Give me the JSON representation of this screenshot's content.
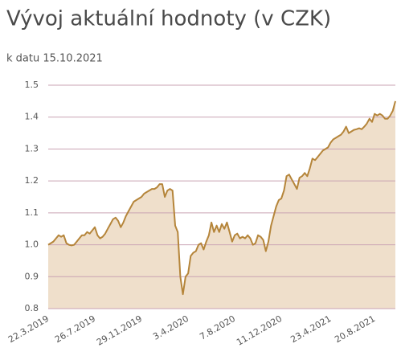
{
  "chart_data": {
    "type": "area",
    "title": "Vývoj aktuální hodnoty (v CZK)",
    "subtitle": "k datu 15.10.2021",
    "categories": [
      "22.3.2019",
      null,
      null,
      null,
      null,
      null,
      null,
      null,
      null,
      null,
      null,
      null,
      null,
      null,
      null,
      null,
      null,
      null,
      "26.7.2019",
      null,
      null,
      null,
      null,
      null,
      null,
      null,
      null,
      null,
      null,
      null,
      null,
      null,
      null,
      null,
      null,
      null,
      "29.11.2019",
      null,
      null,
      null,
      null,
      null,
      null,
      null,
      null,
      null,
      null,
      null,
      null,
      null,
      null,
      null,
      null,
      null,
      "3.4.2020",
      null,
      null,
      null,
      null,
      null,
      null,
      null,
      null,
      null,
      null,
      null,
      null,
      null,
      null,
      null,
      null,
      null,
      "7.8.2020",
      null,
      null,
      null,
      null,
      null,
      null,
      null,
      null,
      null,
      null,
      null,
      null,
      null,
      null,
      null,
      null,
      null,
      "11.12.2020",
      null,
      null,
      null,
      null,
      null,
      null,
      null,
      null,
      null,
      null,
      null,
      null,
      null,
      null,
      null,
      null,
      null,
      null,
      "23.4.2021",
      null,
      null,
      null,
      null,
      null,
      null,
      null,
      null,
      null,
      null,
      null,
      null,
      null,
      null,
      null,
      null,
      "20.8.2021",
      null,
      null,
      null,
      null,
      null,
      null,
      null,
      null
    ],
    "series": [
      {
        "color": "#b5853a",
        "fill": "#efdfcb",
        "values": [
          1.0,
          1.005,
          1.01,
          1.02,
          1.03,
          1.025,
          1.03,
          1.005,
          1.0,
          0.998,
          1.0,
          1.01,
          1.02,
          1.03,
          1.03,
          1.04,
          1.035,
          1.045,
          1.055,
          1.03,
          1.02,
          1.025,
          1.035,
          1.05,
          1.065,
          1.08,
          1.085,
          1.075,
          1.055,
          1.07,
          1.09,
          1.105,
          1.12,
          1.135,
          1.14,
          1.145,
          1.15,
          1.16,
          1.165,
          1.17,
          1.175,
          1.175,
          1.18,
          1.19,
          1.19,
          1.15,
          1.17,
          1.175,
          1.17,
          1.06,
          1.04,
          0.9,
          0.845,
          0.9,
          0.91,
          0.965,
          0.975,
          0.98,
          1.0,
          1.005,
          0.985,
          1.01,
          1.03,
          1.07,
          1.04,
          1.06,
          1.04,
          1.065,
          1.05,
          1.07,
          1.04,
          1.01,
          1.03,
          1.035,
          1.02,
          1.025,
          1.02,
          1.03,
          1.02,
          1.0,
          1.005,
          1.03,
          1.025,
          1.015,
          0.98,
          1.01,
          1.06,
          1.09,
          1.12,
          1.14,
          1.145,
          1.17,
          1.215,
          1.22,
          1.205,
          1.19,
          1.175,
          1.21,
          1.215,
          1.225,
          1.215,
          1.24,
          1.27,
          1.265,
          1.275,
          1.285,
          1.295,
          1.3,
          1.305,
          1.32,
          1.33,
          1.335,
          1.34,
          1.345,
          1.355,
          1.37,
          1.35,
          1.355,
          1.36,
          1.362,
          1.365,
          1.362,
          1.37,
          1.38,
          1.395,
          1.385,
          1.41,
          1.405,
          1.41,
          1.405,
          1.395,
          1.395,
          1.405,
          1.42,
          1.45
        ]
      }
    ],
    "ylim": [
      0.8,
      1.5
    ],
    "yticks": [
      0.8,
      0.9,
      {
        "value": 1,
        "label": "1.0"
      },
      1.1,
      1.2,
      1.3,
      1.4,
      1.5
    ],
    "grid": true,
    "grid_color": "#c9a3b3"
  }
}
